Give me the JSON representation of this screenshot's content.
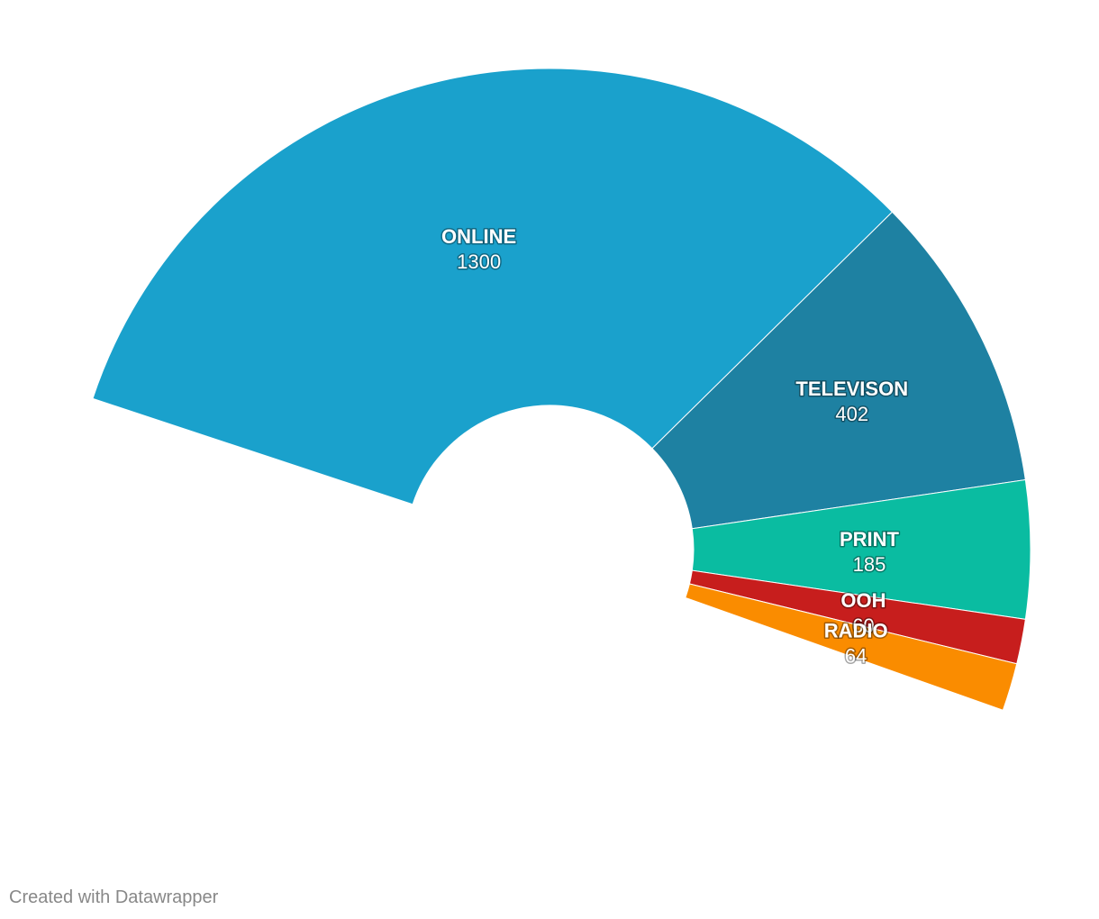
{
  "chart_data": {
    "type": "pie",
    "variant": "semi-donut",
    "categories": [
      "ONLINE",
      "TELEVISON",
      "PRINT",
      "OOH",
      "RADIO"
    ],
    "values": [
      1300,
      402,
      185,
      60,
      64
    ],
    "colors": [
      "#1aa1cc",
      "#1e81a2",
      "#0abca1",
      "#c71e1d",
      "#fa8c00"
    ],
    "title": "",
    "legend": "none",
    "data_labels": "inside"
  },
  "footer": {
    "credit": "Created with Datawrapper"
  }
}
